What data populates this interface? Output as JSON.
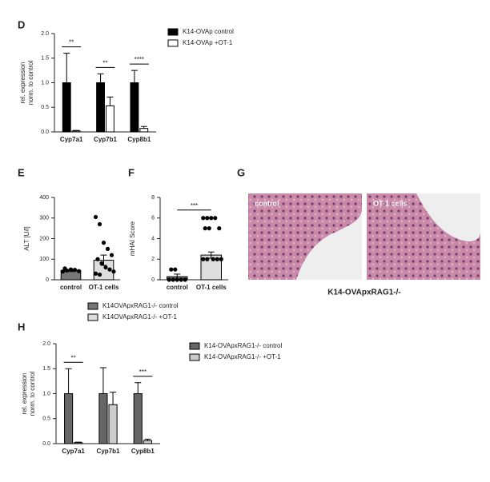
{
  "chart_data": [
    {
      "type": "bar",
      "panel": "D",
      "ylabel": [
        "rel. expression",
        "norm. to control"
      ],
      "categories": [
        "Cyp7a1",
        "Cyp7b1",
        "Cyp8b1"
      ],
      "series": [
        {
          "name": "K14-OVAp control",
          "color": "#000000",
          "values": [
            1.0,
            1.0,
            1.0
          ],
          "errors": [
            0.6,
            0.18,
            0.25
          ]
        },
        {
          "name": "K14-OVAp +OT-1",
          "color": "#ffffff",
          "values": [
            0.02,
            0.53,
            0.07
          ],
          "errors": [
            0.01,
            0.18,
            0.04
          ]
        }
      ],
      "significance": [
        "**",
        "**",
        "****"
      ],
      "ylim": [
        0,
        2.0
      ],
      "yticks": [
        {
          "value": 0,
          "label": "0.0"
        },
        {
          "value": 0.5,
          "label": "0.5"
        },
        {
          "value": 1.0,
          "label": "1.0"
        },
        {
          "value": 1.5,
          "label": "1.5"
        },
        {
          "value": 2.0,
          "label": "2.0"
        }
      ]
    },
    {
      "type": "dotplot",
      "panel": "E",
      "ylabel": [
        "ALT [U/l]"
      ],
      "categories": [
        "control",
        "OT-1 cells"
      ],
      "colors": [
        "#777777",
        "#dddddd"
      ],
      "values": [
        45,
        95
      ],
      "errors": [
        5,
        25
      ],
      "points": [
        [
          40,
          45,
          50,
          48,
          42,
          55
        ],
        [
          305,
          270,
          180,
          150,
          120,
          100,
          80,
          60,
          50,
          40,
          30,
          25
        ]
      ],
      "legend": [
        "K14OVApxRAG1-/- control",
        "K14OVApxRAG1-/- +OT-1"
      ],
      "ylim": [
        0,
        400
      ],
      "yticks": [
        0,
        100,
        200,
        300,
        400
      ]
    },
    {
      "type": "dotplot",
      "panel": "F",
      "ylabel": [
        "mHAI Score"
      ],
      "categories": [
        "control",
        "OT-1 cells"
      ],
      "colors": [
        "#777777",
        "#dddddd"
      ],
      "values": [
        0.3,
        2.4
      ],
      "errors": [
        0.25,
        0.3
      ],
      "points": [
        [
          0,
          0,
          0,
          0,
          0,
          1,
          1
        ],
        [
          6,
          6,
          6,
          6,
          5,
          5,
          5,
          2,
          2,
          2,
          2,
          2
        ]
      ],
      "significance": "***",
      "ylim": [
        0,
        8
      ],
      "yticks": [
        0,
        2,
        4,
        6,
        8
      ]
    },
    {
      "type": "bar",
      "panel": "H",
      "ylabel": [
        "rel. expression",
        "norm. to control"
      ],
      "categories": [
        "Cyp7a1",
        "Cyp7b1",
        "Cyp8b1"
      ],
      "series": [
        {
          "name": "K14-OVApxRAG1-/- control",
          "color": "#666666",
          "values": [
            1.0,
            1.0,
            1.0
          ],
          "errors": [
            0.5,
            0.52,
            0.22
          ]
        },
        {
          "name": "K14-OVApxRAG1-/- +OT-1",
          "color": "#cccccc",
          "values": [
            0.02,
            0.78,
            0.06
          ],
          "errors": [
            0.01,
            0.25,
            0.03
          ]
        }
      ],
      "significance": [
        "**",
        null,
        "***"
      ],
      "ylim": [
        0,
        2.0
      ],
      "yticks": [
        {
          "value": 0,
          "label": "0.0"
        },
        {
          "value": 0.5,
          "label": "0.5"
        },
        {
          "value": 1.0,
          "label": "1.0"
        },
        {
          "value": 1.5,
          "label": "1.5"
        },
        {
          "value": 2.0,
          "label": "2.0"
        }
      ]
    }
  ],
  "image_panel": {
    "panel": "G",
    "labels": [
      "control",
      "OT-1 cells"
    ],
    "caption": "K14-OVApxRAG1-/-"
  }
}
